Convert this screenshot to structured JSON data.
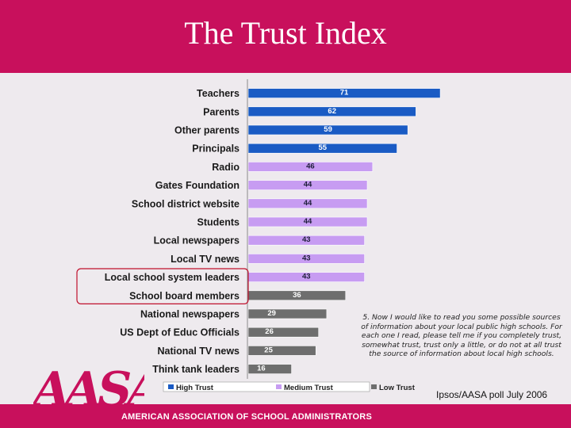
{
  "slide": {
    "title": "The Trust Index",
    "question": "5. Now I would like to read you some possible sources of information about your local public high schools. For each one I read, please tell me if you completely trust, somewhat trust, trust only a little, or do not at all trust the source of information about local high schools.",
    "credit": "Ipsos/AASA poll  July 2006",
    "org_name": "AMERICAN ASSOCIATION OF SCHOOL ADMINISTRATORS",
    "logo_letters": "AASA",
    "highlighted_rows": [
      "Local school system leaders",
      "School board members"
    ]
  },
  "colors": {
    "brand": "#c8105c",
    "high_trust": "#1a5bc4",
    "medium_trust": "#c79cf2",
    "low_trust": "#6e6e6e",
    "highlight_box": "#c0102c"
  },
  "chart_data": {
    "type": "bar",
    "orientation": "horizontal",
    "xlim": [
      0,
      100
    ],
    "categories": [
      "Teachers",
      "Parents",
      "Other parents",
      "Principals",
      "Radio",
      "Gates Foundation",
      "School district website",
      "Students",
      "Local newspapers",
      "Local TV news",
      "Local school system leaders",
      "School board members",
      "National newspapers",
      "US Dept of Educ Officials",
      "National TV news",
      "Think tank leaders"
    ],
    "values": [
      71,
      62,
      59,
      55,
      46,
      44,
      44,
      44,
      43,
      43,
      43,
      36,
      29,
      26,
      25,
      16
    ],
    "groups": [
      "High Trust",
      "High Trust",
      "High Trust",
      "High Trust",
      "Medium Trust",
      "Medium Trust",
      "Medium Trust",
      "Medium Trust",
      "Medium Trust",
      "Medium Trust",
      "Medium Trust",
      "Low Trust",
      "Low Trust",
      "Low Trust",
      "Low Trust",
      "Low Trust"
    ],
    "legend": [
      "High Trust",
      "Medium Trust",
      "Low Trust"
    ],
    "legend_position": "bottom"
  }
}
